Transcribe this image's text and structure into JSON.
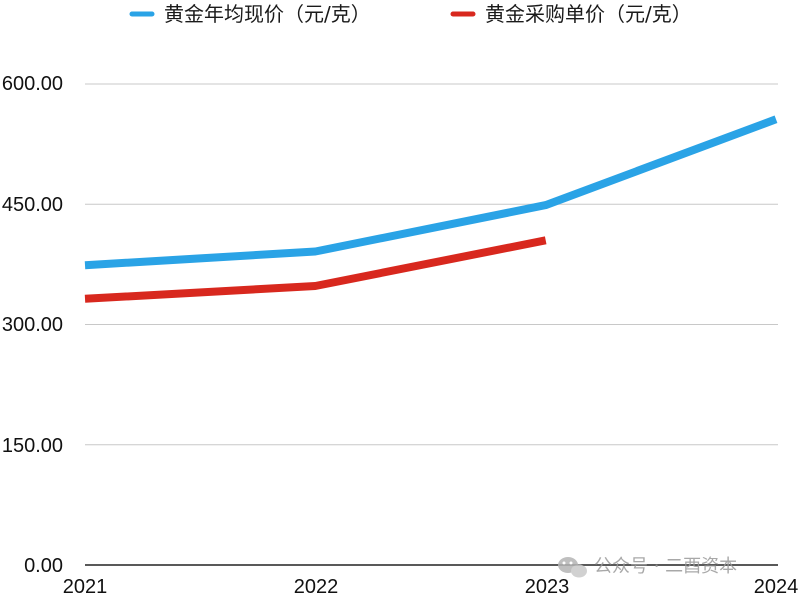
{
  "chart_data": {
    "type": "line",
    "title": "",
    "xlabel": "",
    "ylabel": "",
    "categories": [
      "2021",
      "2022",
      "2023",
      "2024"
    ],
    "ylim": [
      0,
      600
    ],
    "yticks": [
      "0.00",
      "150.00",
      "300.00",
      "450.00",
      "600.00"
    ],
    "grid": true,
    "legend_position": "top",
    "series": [
      {
        "name": "黄金年均现价（元/克）",
        "color": "#2aa3e6",
        "values": [
          374,
          391,
          449,
          556
        ]
      },
      {
        "name": "黄金采购单价（元/克）",
        "color": "#d8281e",
        "values": [
          332,
          348,
          405,
          null
        ]
      }
    ]
  },
  "watermark": {
    "icon": "wechat-icon",
    "text": "公众号 · 二酉资本"
  }
}
